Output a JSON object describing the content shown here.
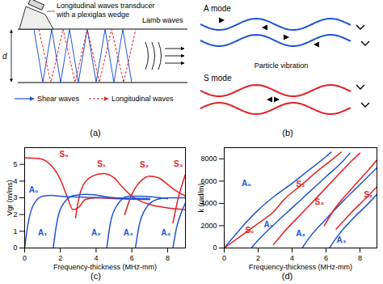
{
  "panels": {
    "a": {
      "caption": "(a)",
      "transducer_label": [
        "Longitudinal waves transducer",
        "with a plexiglas wedge"
      ],
      "wave_label": "Lamb waves",
      "thickness_label": "d",
      "key_entries": [
        {
          "label": "Shear waves",
          "color": "#2155d6",
          "line_style": "solid"
        },
        {
          "label": "Longitudinal waves",
          "color": "#e41f26",
          "line_style": "dashed"
        }
      ]
    },
    "b": {
      "caption": "(b)",
      "modes": [
        {
          "label": "A mode",
          "color": "#2155d6"
        },
        {
          "label": "S mode",
          "color": "#e41f26"
        }
      ],
      "center_label": "Particle vibration"
    }
  },
  "chart_data": [
    {
      "type": "line",
      "caption": "(c)",
      "x_label": "Frequency-thickness (MHz-mm)",
      "y_label": "Vgr (m/ms)",
      "xlim": [
        0,
        9
      ],
      "xticks": [
        0,
        2,
        4,
        6,
        8
      ],
      "ylim": [
        0,
        6
      ],
      "yticks": [
        0,
        1,
        2,
        3,
        4,
        5
      ],
      "series": [
        {
          "name": "S₀",
          "color": "#e41f26",
          "label_x": 2.2,
          "label_y": 5.6,
          "x": [
            0,
            0.8,
            1.2,
            1.6,
            2,
            2.4,
            2.7,
            3,
            3.4,
            4,
            5,
            7
          ],
          "values": [
            5.4,
            5.35,
            5.2,
            4.8,
            4.1,
            3.0,
            2.3,
            2.4,
            2.9,
            3.0,
            2.95,
            2.9
          ]
        },
        {
          "name": "S₁",
          "color": "#e41f26",
          "label_x": 4.3,
          "label_y": 5.0,
          "x": [
            2.85,
            3.0,
            3.3,
            3.8,
            4.4,
            5.0,
            5.5,
            6.0,
            6.5,
            7,
            8,
            9
          ],
          "values": [
            1.8,
            2.8,
            3.8,
            4.3,
            4.45,
            4.2,
            3.6,
            3.1,
            2.8,
            2.6,
            2.4,
            2.3
          ]
        },
        {
          "name": "S₂",
          "color": "#e41f26",
          "label_x": 6.7,
          "label_y": 4.95,
          "x": [
            5.6,
            6.0,
            6.5,
            7.0,
            7.5,
            8,
            8.5,
            9
          ],
          "values": [
            2.0,
            3.2,
            4.0,
            4.3,
            4.2,
            3.8,
            3.4,
            3.1
          ]
        },
        {
          "name": "S₃",
          "color": "#e41f26",
          "label_x": 8.6,
          "label_y": 5.0,
          "x": [
            8.3,
            8.6,
            9
          ],
          "values": [
            1.5,
            3.0,
            4.4
          ]
        },
        {
          "name": "A₀",
          "color": "#2155d6",
          "label_x": 0.5,
          "label_y": 3.45,
          "x": [
            0,
            0.2,
            0.5,
            1,
            1.5,
            2,
            3,
            5,
            7
          ],
          "values": [
            0,
            1.5,
            2.6,
            3.1,
            3.15,
            3.1,
            3.05,
            3.0,
            2.95
          ]
        },
        {
          "name": "A₁",
          "color": "#2155d6",
          "label_x": 1.0,
          "label_y": 0.9,
          "x": [
            1.6,
            1.8,
            2.2,
            2.8,
            3.5,
            5,
            7
          ],
          "values": [
            0,
            1.5,
            2.7,
            3.15,
            3.2,
            3.0,
            2.9
          ]
        },
        {
          "name": "A₂",
          "color": "#2155d6",
          "label_x": 4.0,
          "label_y": 0.9,
          "x": [
            4.6,
            4.8,
            5.2,
            5.8,
            6.5,
            8
          ],
          "values": [
            0,
            1.5,
            2.6,
            3.1,
            3.1,
            2.95
          ]
        },
        {
          "name": "A₃",
          "color": "#2155d6",
          "label_x": 5.8,
          "label_y": 0.9,
          "x": [
            6.2,
            6.4,
            6.8,
            7.4,
            8,
            9
          ],
          "values": [
            0,
            1.3,
            2.4,
            2.9,
            3.0,
            3.0
          ]
        },
        {
          "name": "A₄",
          "color": "#2155d6",
          "label_x": 7.9,
          "label_y": 0.9,
          "x": [
            8.3,
            8.5,
            8.8,
            9
          ],
          "values": [
            0,
            1.2,
            2.2,
            2.7
          ]
        }
      ]
    },
    {
      "type": "line",
      "caption": "(d)",
      "x_label": "Frequency-thickness (MHz-mm)",
      "y_label": "k (rad/m)",
      "xlim": [
        0,
        9
      ],
      "xticks": [
        0,
        2,
        4,
        6,
        8
      ],
      "ylim": [
        0,
        9000
      ],
      "yticks": [
        0,
        2000,
        4000,
        6000,
        8000
      ],
      "series": [
        {
          "name": "A₀",
          "color": "#2155d6",
          "label_x": 1.3,
          "label_y": 5800,
          "x": [
            0,
            0.5,
            1,
            2,
            3,
            4,
            5,
            6,
            6.3
          ],
          "values": [
            0,
            900,
            1800,
            3400,
            4700,
            5800,
            7000,
            8200,
            8600
          ]
        },
        {
          "name": "S₀",
          "color": "#e41f26",
          "label_x": 1.5,
          "label_y": 1600,
          "x": [
            0,
            1,
            2,
            3,
            3.5,
            4.5,
            5.5,
            6.5,
            6.9
          ],
          "values": [
            0,
            1100,
            2200,
            3400,
            4300,
            5600,
            6900,
            8100,
            8600
          ]
        },
        {
          "name": "A₁",
          "color": "#2155d6",
          "label_x": 2.6,
          "label_y": 2100,
          "x": [
            1.6,
            2,
            3,
            4,
            5,
            6,
            7,
            7.4
          ],
          "values": [
            0,
            700,
            2200,
            3600,
            5000,
            6400,
            7800,
            8500
          ]
        },
        {
          "name": "S₁",
          "color": "#e41f26",
          "label_x": 4.5,
          "label_y": 5700,
          "x": [
            2.9,
            3.5,
            4.5,
            5.5,
            6.5,
            7.5,
            8
          ],
          "values": [
            300,
            1400,
            3000,
            4600,
            6200,
            7800,
            8500
          ]
        },
        {
          "name": "A₂",
          "color": "#2155d6",
          "label_x": 4.5,
          "label_y": 1250,
          "x": [
            4.6,
            5,
            6,
            7,
            8,
            9
          ],
          "values": [
            0,
            900,
            2600,
            4200,
            5700,
            7200
          ]
        },
        {
          "name": "S₃",
          "color": "#e41f26",
          "label_x": 5.6,
          "label_y": 4100,
          "x": [
            5.9,
            6.5,
            7.5,
            8.5,
            9
          ],
          "values": [
            2000,
            3500,
            5300,
            7000,
            7900
          ]
        },
        {
          "name": "A₃",
          "color": "#2155d6",
          "label_x": 6.9,
          "label_y": 700,
          "x": [
            6.2,
            6.6,
            7.5,
            8.5,
            9
          ],
          "values": [
            0,
            900,
            2500,
            4000,
            4800
          ]
        },
        {
          "name": "S₂",
          "color": "#e41f26",
          "label_x": 8.5,
          "label_y": 4800,
          "x": [
            6.6,
            7.5,
            8.5,
            9
          ],
          "values": [
            1700,
            3200,
            4700,
            5500
          ]
        }
      ]
    }
  ]
}
